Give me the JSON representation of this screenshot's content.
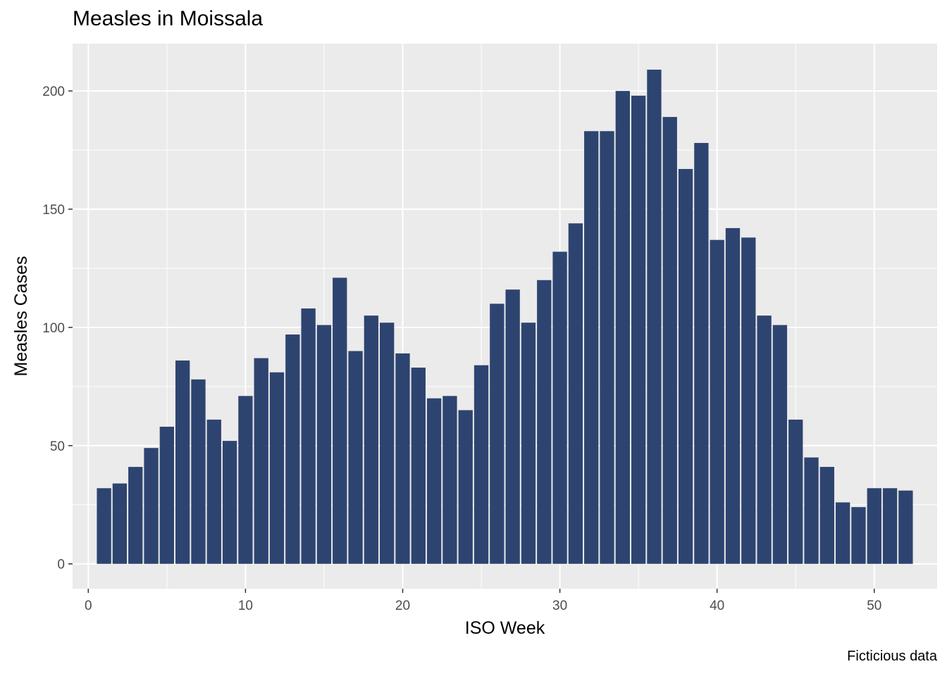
{
  "chart_data": {
    "type": "bar",
    "title": "Measles in Moissala",
    "xlabel": "ISO Week",
    "ylabel": "Measles Cases",
    "caption": "Ficticious data",
    "bar_color": "#2e4470",
    "panel_color": "#ebebeb",
    "grid_color": "#ffffff",
    "grid": true,
    "xlim": [
      -1,
      54
    ],
    "ylim": [
      -10.5,
      220
    ],
    "x_ticks": [
      0,
      10,
      20,
      30,
      40,
      50
    ],
    "y_ticks": [
      0,
      50,
      100,
      150,
      200
    ],
    "x_tick_labels": [
      "0",
      "10",
      "20",
      "30",
      "40",
      "50"
    ],
    "y_tick_labels": [
      "0",
      "50",
      "100",
      "150",
      "200"
    ],
    "x": [
      1,
      2,
      3,
      4,
      5,
      6,
      7,
      8,
      9,
      10,
      11,
      12,
      13,
      14,
      15,
      16,
      17,
      18,
      19,
      20,
      21,
      22,
      23,
      24,
      25,
      26,
      27,
      28,
      29,
      30,
      31,
      32,
      33,
      34,
      35,
      36,
      37,
      38,
      39,
      40,
      41,
      42,
      43,
      44,
      45,
      46,
      47,
      48,
      49,
      50,
      51,
      52
    ],
    "values": [
      32,
      34,
      41,
      49,
      58,
      86,
      78,
      61,
      52,
      71,
      87,
      81,
      97,
      108,
      101,
      121,
      90,
      105,
      102,
      89,
      83,
      70,
      71,
      65,
      84,
      110,
      116,
      102,
      120,
      132,
      144,
      183,
      183,
      200,
      198,
      209,
      189,
      167,
      178,
      137,
      142,
      138,
      105,
      101,
      61,
      45,
      41,
      26,
      24,
      32,
      32,
      31
    ]
  }
}
